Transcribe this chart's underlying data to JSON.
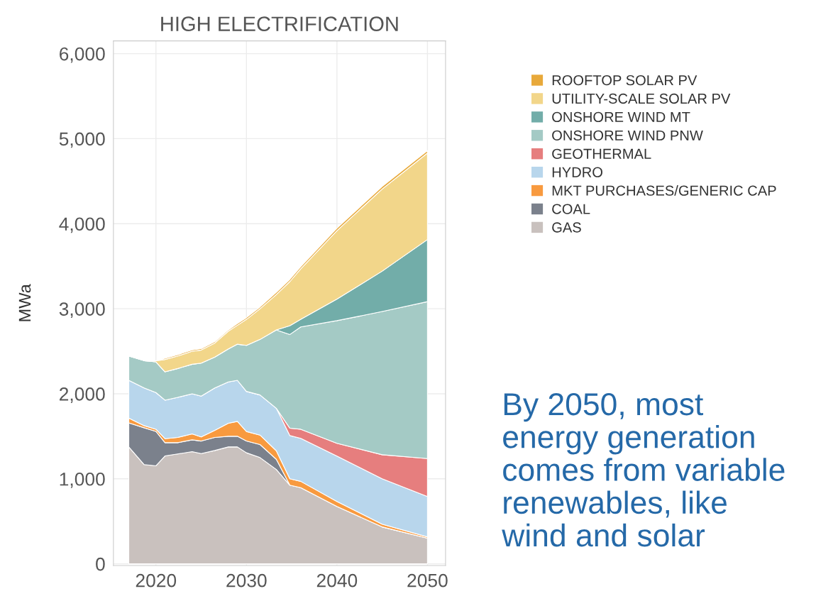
{
  "chart_data": {
    "type": "area",
    "stacked": true,
    "title": "HIGH ELECTRIFICATION",
    "ylabel": "MWa",
    "x": [
      2017,
      2018.7,
      2020,
      2021,
      2022.4,
      2024,
      2025,
      2026.5,
      2028,
      2029,
      2030,
      2031.5,
      2033.3,
      2034.8,
      2036,
      2040,
      2045,
      2050
    ],
    "series": [
      {
        "name": "GAS",
        "color": "#c9c1be",
        "values": [
          1375,
          1167,
          1153,
          1269,
          1292,
          1319,
          1297,
          1333,
          1375,
          1375,
          1306,
          1250,
          1110,
          925,
          896,
          675,
          434,
          301
        ]
      },
      {
        "name": "COAL",
        "color": "#7b818c",
        "values": [
          283,
          433,
          405,
          156,
          133,
          139,
          147,
          153,
          125,
          125,
          138,
          153,
          120,
          0,
          0,
          0,
          0,
          0
        ]
      },
      {
        "name": "MKT PURCHASES/GENERIC CAP",
        "color": "#f89a3f",
        "values": [
          56,
          25,
          25,
          47,
          61,
          70,
          48,
          83,
          153,
          175,
          112,
          111,
          100,
          75,
          74,
          58,
          33,
          16
        ]
      },
      {
        "name": "HYDRO",
        "color": "#b8d6ec",
        "values": [
          444,
          444,
          431,
          453,
          472,
          472,
          480,
          500,
          486,
          483,
          472,
          472,
          500,
          508,
          506,
          534,
          533,
          475
        ]
      },
      {
        "name": "GEOTHERMAL",
        "color": "#e67e7e",
        "values": [
          0,
          0,
          0,
          0,
          0,
          0,
          0,
          0,
          0,
          0,
          0,
          0,
          0,
          87,
          107,
          150,
          283,
          446
        ]
      },
      {
        "name": "ONSHORE WIND PNW",
        "color": "#a4cac5",
        "values": [
          286,
          320,
          361,
          333,
          339,
          347,
          389,
          362,
          389,
          425,
          541,
          653,
          920,
          1102,
          1203,
          1443,
          1684,
          1845
        ]
      },
      {
        "name": "ONSHORE WIND MT",
        "color": "#72ada9",
        "values": [
          0,
          0,
          0,
          0,
          0,
          0,
          0,
          0,
          0,
          0,
          0,
          0,
          0,
          103,
          89,
          253,
          475,
          730
        ]
      },
      {
        "name": "UTILITY-SCALE SOLAR PV",
        "color": "#f2d68a",
        "values": [
          0,
          0,
          14,
          145,
          147,
          153,
          153,
          166,
          208,
          223,
          306,
          361,
          417,
          520,
          595,
          804,
          966,
          1017
        ]
      },
      {
        "name": "ROOFTOP SOLAR PV",
        "color": "#e8a93a",
        "values": [
          0,
          0,
          0,
          15,
          15,
          15,
          15,
          15,
          15,
          20,
          20,
          20,
          25,
          25,
          25,
          30,
          30,
          30
        ]
      }
    ],
    "xlim": [
      2015.3,
      2052
    ],
    "xticks": [
      2020,
      2030,
      2040,
      2050
    ],
    "ylim": [
      -20,
      6150
    ],
    "yticks": [
      {
        "value": 0,
        "label": "0"
      },
      {
        "value": 1000,
        "label": "1,000"
      },
      {
        "value": 2000,
        "label": "2,000"
      },
      {
        "value": 3000,
        "label": "3,000"
      },
      {
        "value": 4000,
        "label": "4,000"
      },
      {
        "value": 5000,
        "label": "5,000"
      },
      {
        "value": 6000,
        "label": "6,000"
      }
    ],
    "grid": true,
    "legend": "right",
    "annotations": [
      "By 2050, most\nenergy generation\ncomes from variable\nrenewables, like\nwind and solar"
    ]
  }
}
